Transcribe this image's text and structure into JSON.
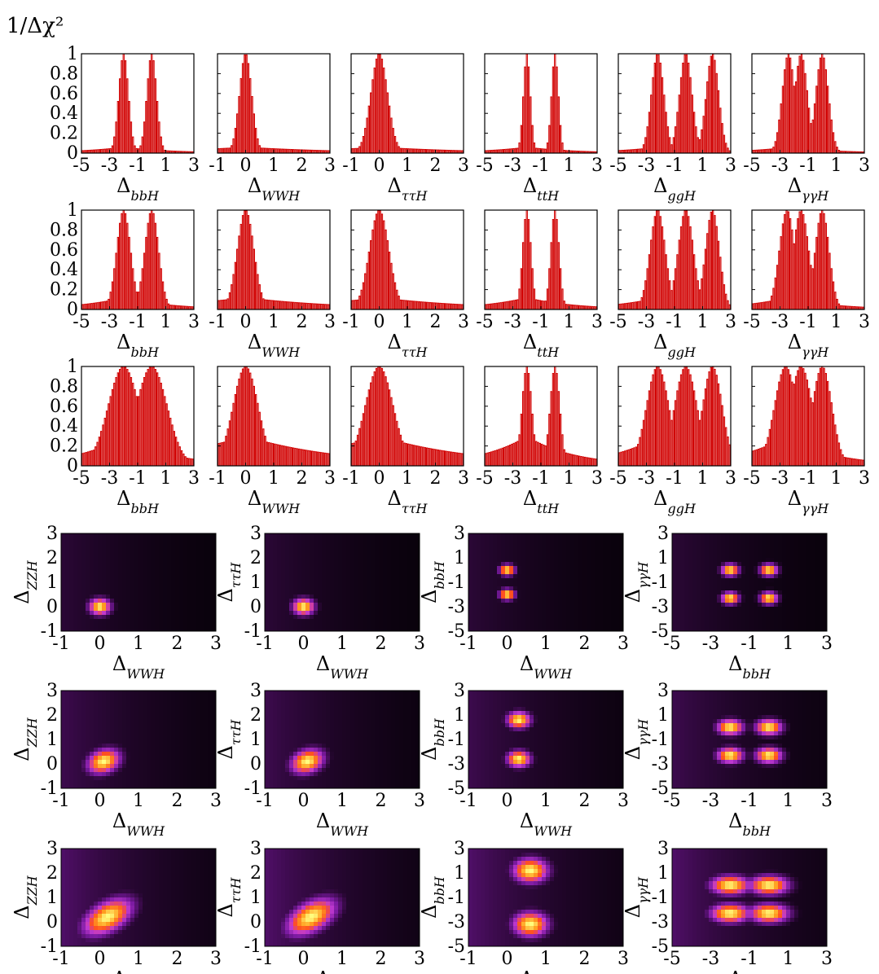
{
  "figure": {
    "ylabel": "1/Δχ²"
  },
  "chart_data": [
    {
      "type": "bar",
      "name": "histograms",
      "ylim": [
        0,
        1
      ],
      "yticks": [
        "0",
        "0.2",
        "0.4",
        "0.6",
        "0.8",
        "1"
      ],
      "columns": [
        {
          "xlabel": "Δ",
          "sub": "bbH",
          "xlim": [
            -5,
            3
          ],
          "xticks": [
            "-5",
            "-3",
            "-1",
            "1",
            "3"
          ]
        },
        {
          "xlabel": "Δ",
          "sub": "WWH",
          "xlim": [
            -1,
            3
          ],
          "xticks": [
            "-1",
            "0",
            "1",
            "2",
            "3"
          ]
        },
        {
          "xlabel": "Δ",
          "sub": "ττH",
          "xlim": [
            -1,
            3
          ],
          "xticks": [
            "-1",
            "0",
            "1",
            "2",
            "3"
          ]
        },
        {
          "xlabel": "Δ",
          "sub": "ttH",
          "xlim": [
            -5,
            3
          ],
          "xticks": [
            "-5",
            "-3",
            "-1",
            "1",
            "3"
          ]
        },
        {
          "xlabel": "Δ",
          "sub": "ggH",
          "xlim": [
            -5,
            3
          ],
          "xticks": [
            "-5",
            "-3",
            "-1",
            "1",
            "3"
          ]
        },
        {
          "xlabel": "Δ",
          "sub": "γγH",
          "xlim": [
            -5,
            3
          ],
          "xticks": [
            "-5",
            "-3",
            "-1",
            "1",
            "3"
          ]
        }
      ],
      "rows": [
        {
          "peaks": [
            [
              [
                -2.0,
                0.35
              ],
              [
                0.0,
                0.35
              ]
            ],
            [
              [
                0.0,
                0.22
              ]
            ],
            [
              [
                0.0,
                0.3
              ]
            ],
            [
              [
                -2.0,
                0.25
              ],
              [
                0.0,
                0.25
              ]
            ],
            [
              [
                -2.2,
                0.45
              ],
              [
                -0.2,
                0.45
              ],
              [
                1.7,
                0.45
              ]
            ],
            [
              [
                -2.4,
                0.45
              ],
              [
                -1.5,
                0.45
              ],
              [
                0.0,
                0.45
              ]
            ]
          ],
          "tail": 0.06
        },
        {
          "peaks": [
            [
              [
                -2.0,
                0.5
              ],
              [
                0.0,
                0.5
              ]
            ],
            [
              [
                0.0,
                0.3
              ]
            ],
            [
              [
                0.0,
                0.35
              ]
            ],
            [
              [
                -2.0,
                0.3
              ],
              [
                0.0,
                0.3
              ]
            ],
            [
              [
                -2.2,
                0.55
              ],
              [
                -0.2,
                0.55
              ],
              [
                1.7,
                0.5
              ]
            ],
            [
              [
                -2.5,
                0.55
              ],
              [
                -1.5,
                0.55
              ],
              [
                0.0,
                0.5
              ]
            ]
          ],
          "tail": 0.12
        },
        {
          "peaks": [
            [
              [
                -2.0,
                1.1
              ],
              [
                0.0,
                1.1
              ]
            ],
            [
              [
                0.0,
                0.45
              ]
            ],
            [
              [
                0.0,
                0.5
              ]
            ],
            [
              [
                -2.0,
                0.35
              ],
              [
                0.0,
                0.35
              ]
            ],
            [
              [
                -2.2,
                0.8
              ],
              [
                -0.2,
                0.8
              ],
              [
                1.7,
                0.7
              ]
            ],
            [
              [
                -2.6,
                0.8
              ],
              [
                -1.5,
                0.8
              ],
              [
                0.0,
                0.7
              ]
            ]
          ],
          "tail": 0.3
        }
      ]
    },
    {
      "type": "heatmap",
      "name": "2d-distributions",
      "columns": [
        {
          "xlabel": "Δ",
          "xsub": "WWH",
          "ylabel": "Δ",
          "ysub": "ZZH",
          "xlim": [
            -1,
            3
          ],
          "ylim": [
            -1,
            3
          ],
          "xticks": [
            "-1",
            "0",
            "1",
            "2",
            "3"
          ],
          "yticks": [
            "-1",
            "0",
            "1",
            "2",
            "3"
          ]
        },
        {
          "xlabel": "Δ",
          "xsub": "WWH",
          "ylabel": "Δ",
          "ysub": "ττH",
          "xlim": [
            -1,
            3
          ],
          "ylim": [
            -1,
            3
          ],
          "xticks": [
            "-1",
            "0",
            "1",
            "2",
            "3"
          ],
          "yticks": [
            "-1",
            "0",
            "1",
            "2",
            "3"
          ]
        },
        {
          "xlabel": "Δ",
          "xsub": "WWH",
          "ylabel": "Δ",
          "ysub": "bbH",
          "xlim": [
            -1,
            3
          ],
          "ylim": [
            -5,
            3
          ],
          "xticks": [
            "-1",
            "0",
            "1",
            "2",
            "3"
          ],
          "yticks": [
            "-5",
            "-3",
            "-1",
            "1",
            "3"
          ]
        },
        {
          "xlabel": "Δ",
          "xsub": "bbH",
          "ylabel": "Δ",
          "ysub": "γγH",
          "xlim": [
            -5,
            3
          ],
          "ylim": [
            -5,
            3
          ],
          "xticks": [
            "-5",
            "-3",
            "-1",
            "1",
            "3"
          ],
          "yticks": [
            "-5",
            "-3",
            "-1",
            "1",
            "3"
          ]
        }
      ],
      "colormap": [
        "#000000",
        "#3a0a4a",
        "#7a1aa0",
        "#c03ad0",
        "#ff5020",
        "#ffa020",
        "#ffff80"
      ]
    }
  ]
}
